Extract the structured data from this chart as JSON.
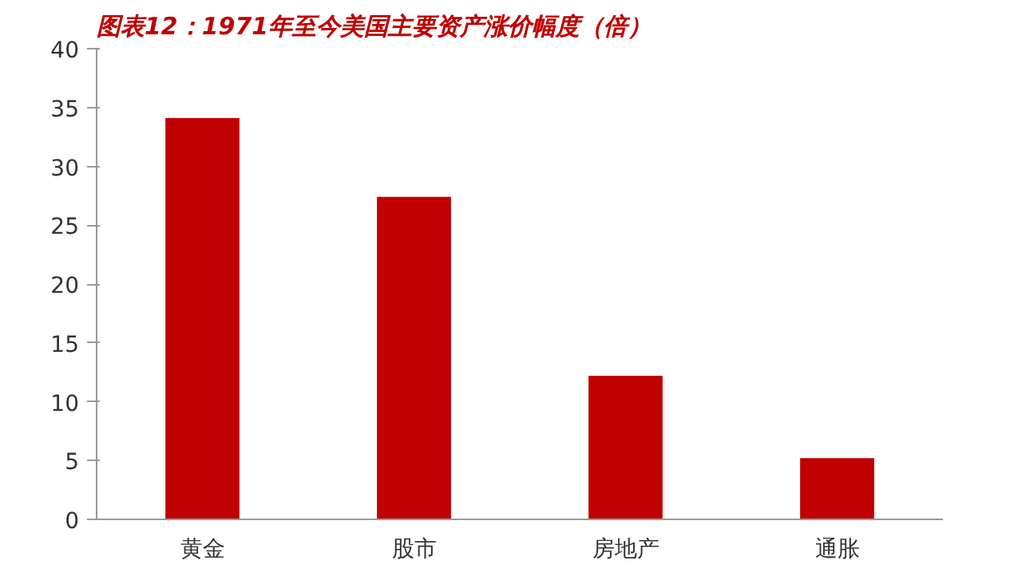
{
  "chart_data": {
    "type": "bar",
    "title": "图表12：1971年至今美国主要资产涨价幅度（倍）",
    "categories": [
      "黄金",
      "股市",
      "房地产",
      "通胀"
    ],
    "values": [
      34.1,
      27.4,
      12.2,
      5.2
    ],
    "color": "#c00000",
    "ylim": [
      0,
      40
    ],
    "yticks": [
      0,
      5,
      10,
      15,
      20,
      25,
      30,
      35,
      40
    ],
    "grid": false
  }
}
